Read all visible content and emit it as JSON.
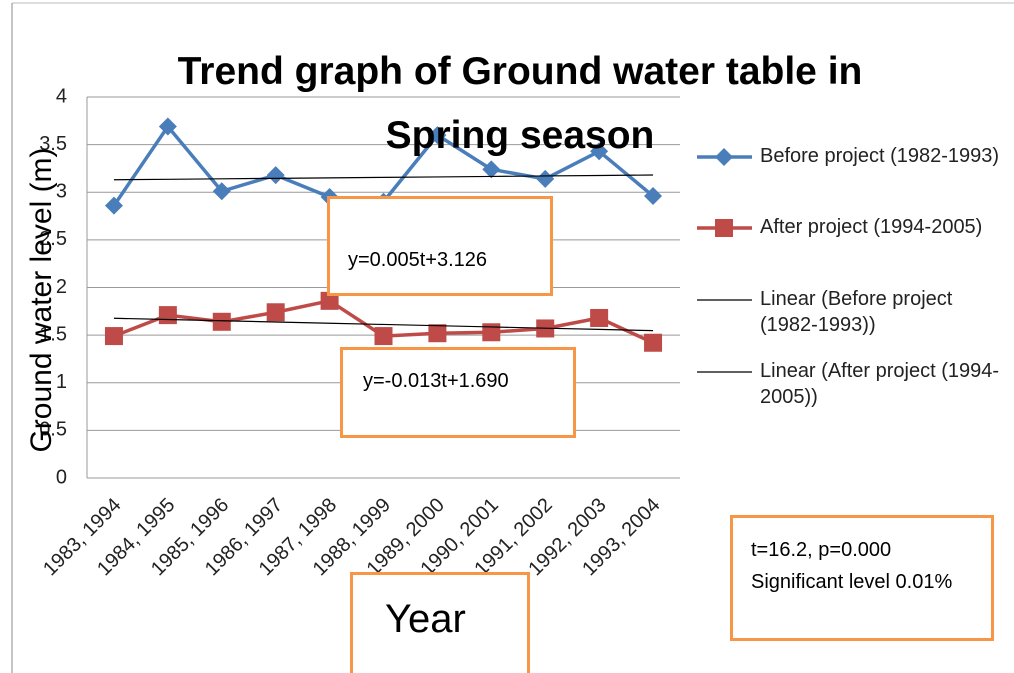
{
  "chart_data": {
    "type": "line",
    "title": "Trend graph of Ground water table in Spring season",
    "y_label": "Ground water level (m)",
    "x_label": "Year",
    "categories": [
      "1983, 1994",
      "1984, 1995",
      "1985, 1996",
      "1986, 1997",
      "1987, 1998",
      "1988, 1999",
      "1989, 2000",
      "1990, 2001",
      "1991, 2002",
      "1992, 2003",
      "1993, 2004"
    ],
    "series": [
      {
        "name": "Before project (1982-1993)",
        "color": "#4a7ebb",
        "marker": "diamond",
        "values": [
          2.86,
          3.69,
          3.01,
          3.18,
          2.95,
          2.9,
          3.6,
          3.24,
          3.14,
          3.43,
          2.96
        ]
      },
      {
        "name": "After project (1994-2005)",
        "color": "#be4b48",
        "marker": "square",
        "values": [
          1.49,
          1.71,
          1.64,
          1.74,
          1.86,
          1.49,
          1.52,
          1.53,
          1.57,
          1.68,
          1.42
        ]
      },
      {
        "name": "Linear (Before project (1982-1993))",
        "color": "#000000",
        "marker": "none",
        "values": [
          3.131,
          3.136,
          3.141,
          3.146,
          3.151,
          3.156,
          3.161,
          3.166,
          3.171,
          3.176,
          3.181
        ]
      },
      {
        "name": "Linear (After project (1994-2005))",
        "color": "#000000",
        "marker": "none",
        "values": [
          1.677,
          1.664,
          1.651,
          1.638,
          1.625,
          1.612,
          1.599,
          1.586,
          1.573,
          1.56,
          1.547
        ]
      }
    ],
    "annotations": [
      "y=0.005t+3.126",
      "y=-0.013t+1.690",
      "t=16.2,  p=0.000 Significant level 0.01%"
    ],
    "ylim": [
      0,
      4
    ],
    "yticks": [
      0,
      0.5,
      1,
      1.5,
      2,
      2.5,
      3,
      3.5,
      4
    ],
    "grid": true,
    "legend": "right"
  }
}
